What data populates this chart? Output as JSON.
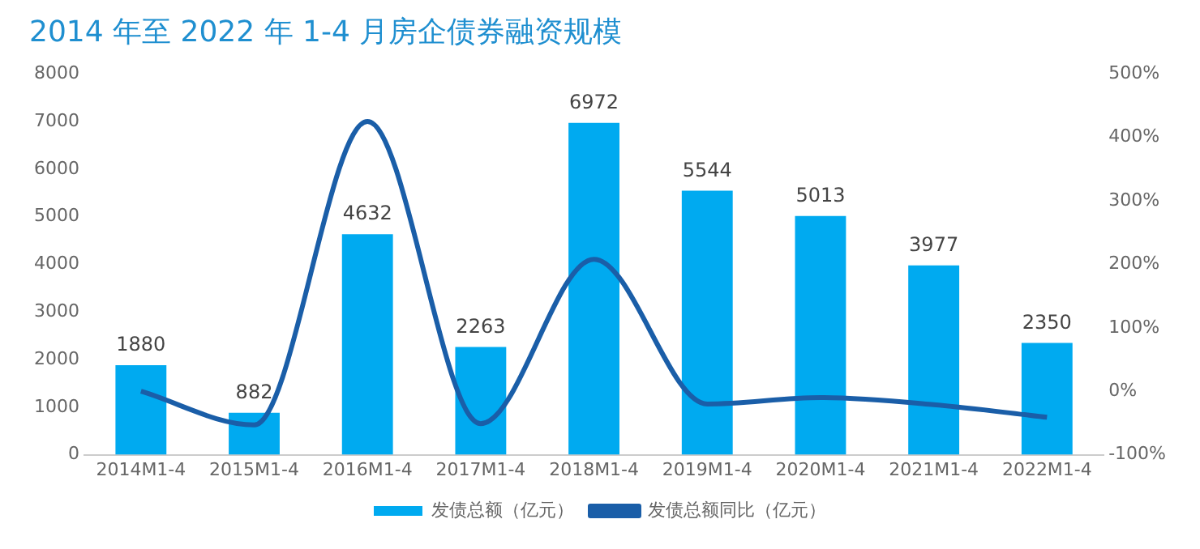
{
  "chart_data": {
    "type": "bar",
    "title": "2014 年至 2022 年 1-4 月房企债券融资规模",
    "categories": [
      "2014M1-4",
      "2015M1-4",
      "2016M1-4",
      "2017M1-4",
      "2018M1-4",
      "2019M1-4",
      "2020M1-4",
      "2021M1-4",
      "2022M1-4"
    ],
    "series": [
      {
        "name": "发债总额（亿元）",
        "color": "#00aaf0",
        "values": [
          1880,
          882,
          4632,
          2263,
          6972,
          5544,
          5013,
          3977,
          2350
        ],
        "value_labels": [
          "1880",
          "882",
          "4632",
          "2263",
          "6972",
          "5544",
          "5013",
          "3977",
          "2350"
        ]
      },
      {
        "name": "发债总额同比（亿元）",
        "type": "line",
        "axis": "y2",
        "color": "#1a5ea8",
        "values": [
          0,
          -53,
          425,
          -51,
          208,
          -20,
          -10,
          -21,
          -41
        ]
      }
    ],
    "ylim": [
      0,
      8000
    ],
    "yticks": [
      0,
      1000,
      2000,
      3000,
      4000,
      5000,
      6000,
      7000,
      8000
    ],
    "y2lim": [
      -100,
      500
    ],
    "y2ticks": [
      {
        "value": -100,
        "label": "-100%"
      },
      {
        "value": 0,
        "label": "0%"
      },
      {
        "value": 100,
        "label": "100%"
      },
      {
        "value": 200,
        "label": "200%"
      },
      {
        "value": 300,
        "label": "300%"
      },
      {
        "value": 400,
        "label": "400%"
      },
      {
        "value": 500,
        "label": "500%"
      }
    ],
    "grid": false,
    "legend": "bottom",
    "marker": "none",
    "line_style": "solid"
  }
}
